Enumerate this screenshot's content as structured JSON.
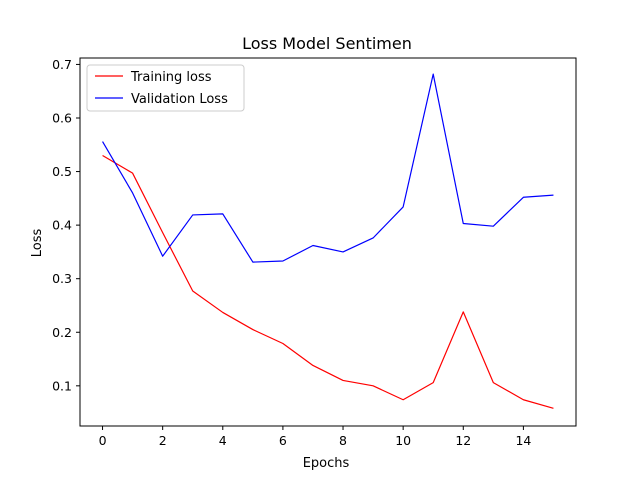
{
  "chart_data": {
    "type": "line",
    "title": "Loss Model Sentimen",
    "xlabel": "Epochs",
    "ylabel": "Loss",
    "xlim": [
      -0.75,
      15.75
    ],
    "ylim": [
      0.025,
      0.712
    ],
    "xticks": [
      0,
      2,
      4,
      6,
      8,
      10,
      12,
      14
    ],
    "yticks": [
      0.1,
      0.2,
      0.3,
      0.4,
      0.5,
      0.6,
      0.7
    ],
    "ytick_labels": [
      "0.1",
      "0.2",
      "0.3",
      "0.4",
      "0.5",
      "0.6",
      "0.7"
    ],
    "grid": false,
    "legend_position": "top-left",
    "x": [
      0,
      1,
      2,
      3,
      4,
      5,
      6,
      7,
      8,
      9,
      10,
      11,
      12,
      13,
      14,
      15
    ],
    "series": [
      {
        "name": "Training loss",
        "color": "#ff0000",
        "values": [
          0.53,
          0.497,
          0.386,
          0.277,
          0.237,
          0.205,
          0.179,
          0.138,
          0.11,
          0.1,
          0.074,
          0.106,
          0.238,
          0.106,
          0.074,
          0.058
        ]
      },
      {
        "name": "Validation Loss",
        "color": "#0000ff",
        "values": [
          0.556,
          0.46,
          0.342,
          0.419,
          0.421,
          0.331,
          0.333,
          0.362,
          0.35,
          0.376,
          0.434,
          0.682,
          0.403,
          0.398,
          0.452,
          0.456
        ]
      }
    ]
  }
}
